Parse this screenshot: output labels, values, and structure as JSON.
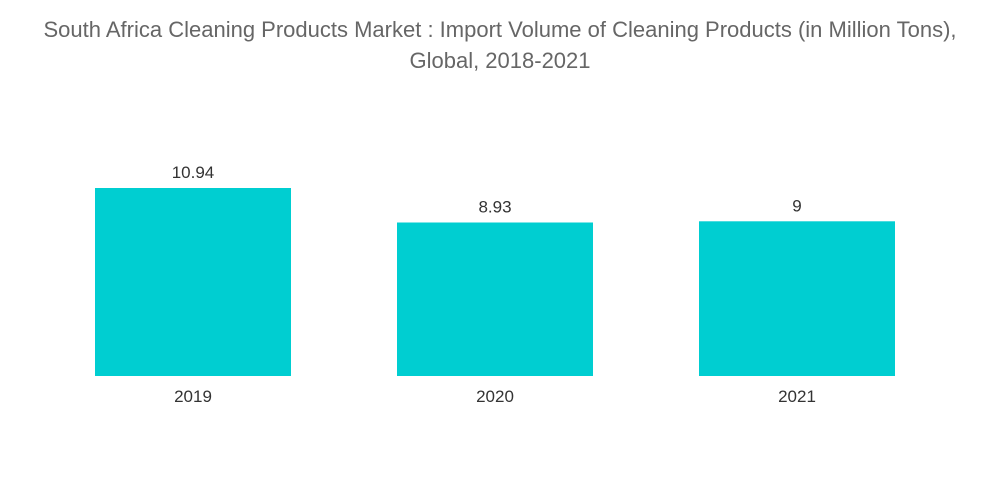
{
  "chart_data": {
    "type": "bar",
    "title": "South Africa Cleaning Products Market : Import Volume of Cleaning Products (in Million Tons), Global, 2018-2021",
    "categories": [
      "2019",
      "2020",
      "2021"
    ],
    "values": [
      10.94,
      8.93,
      9
    ],
    "value_labels": [
      "10.94",
      "8.93",
      "9"
    ],
    "xlabel": "",
    "ylabel": "",
    "ylim": [
      0,
      13.5
    ],
    "grid": false,
    "legend": "none",
    "bar_color": "#00CED1"
  }
}
